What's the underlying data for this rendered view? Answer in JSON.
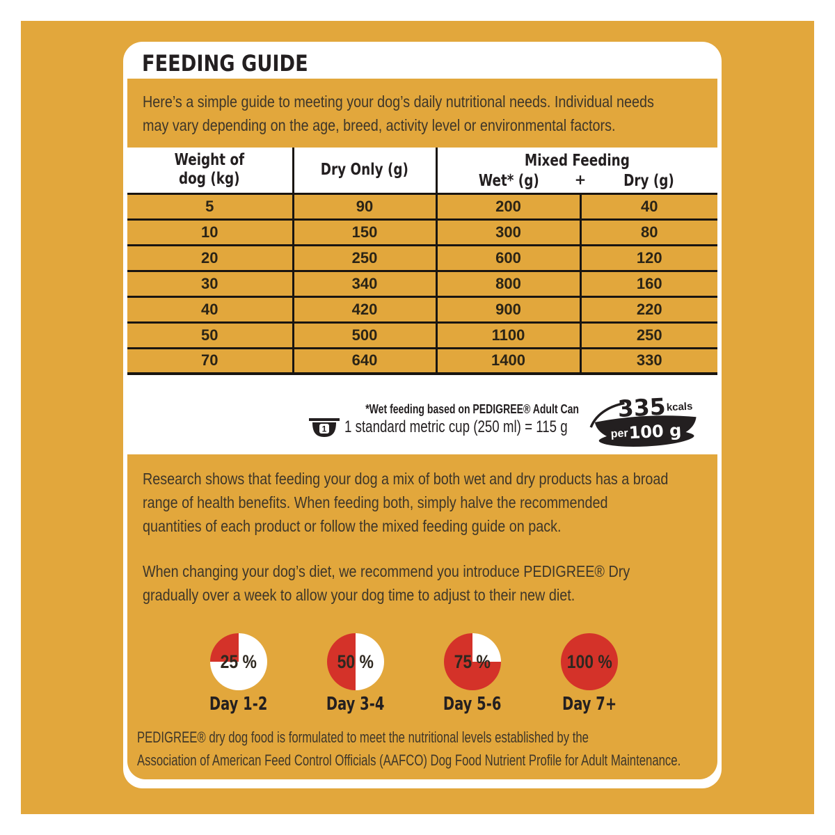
{
  "page": {
    "title": "FEEDING GUIDE"
  },
  "colors": {
    "gold": "#E2A73C",
    "red": "#D43229",
    "ink": "#231F20",
    "text_on_gold": "#3E3629"
  },
  "intro": {
    "lines": [
      "Here’s a simple guide to meeting your dog’s daily nutritional needs. Individual needs",
      "may vary depending on the age, breed, activity level or environmental factors."
    ]
  },
  "table": {
    "header": {
      "weight_line1": "Weight of",
      "weight_line2": "dog (kg)",
      "dry_only": "Dry Only (g)",
      "mixed_feeding": "Mixed Feeding",
      "wet": "Wet* (g)",
      "plus": "+",
      "dry": "Dry (g)"
    },
    "rows": [
      [
        "5",
        "90",
        "200",
        "40"
      ],
      [
        "10",
        "150",
        "300",
        "80"
      ],
      [
        "20",
        "250",
        "600",
        "120"
      ],
      [
        "30",
        "340",
        "800",
        "160"
      ],
      [
        "40",
        "420",
        "900",
        "220"
      ],
      [
        "50",
        "500",
        "1100",
        "250"
      ],
      [
        "70",
        "640",
        "1400",
        "330"
      ]
    ]
  },
  "footnotes": {
    "wet_note": "*Wet feeding based on PEDIGREE® Adult Can",
    "cup_number": "1",
    "cup_note": "1 standard metric cup (250 ml) = 115 g"
  },
  "kcal_badge": {
    "value": "335",
    "unit": "kcals",
    "per": "per",
    "per_value": "100 g"
  },
  "research": {
    "lines": [
      "Research shows that feeding your dog a mix of both wet and dry products has a broad",
      "range of health benefits. When feeding both, simply halve the recommended",
      "quantities of each product or follow the mixed feeding guide on pack."
    ]
  },
  "transition_note": {
    "lines": [
      "When changing your dog’s diet, we recommend you introduce PEDIGREE® Dry",
      "gradually over a week to allow your dog time to adjust to their new diet."
    ]
  },
  "chart_data": {
    "type": "pie",
    "title": "Dry food transition guide",
    "categories": [
      "Day 1-2",
      "Day 3-4",
      "Day 5-6",
      "Day 7+"
    ],
    "values": [
      25,
      50,
      75,
      100
    ],
    "unit": "% new dry food (red slice)",
    "stages": [
      {
        "percent_label": "25 %",
        "value": 25,
        "day_label": "Day 1-2"
      },
      {
        "percent_label": "50 %",
        "value": 50,
        "day_label": "Day 3-4"
      },
      {
        "percent_label": "75 %",
        "value": 75,
        "day_label": "Day 5-6"
      },
      {
        "percent_label": "100 %",
        "value": 100,
        "day_label": "Day 7+"
      }
    ]
  },
  "aafco": {
    "lines": [
      "PEDIGREE® dry dog food is formulated to meet the nutritional levels established by the",
      "Association of American Feed Control Officials (AAFCO) Dog Food Nutrient Profile for Adult Maintenance."
    ]
  }
}
